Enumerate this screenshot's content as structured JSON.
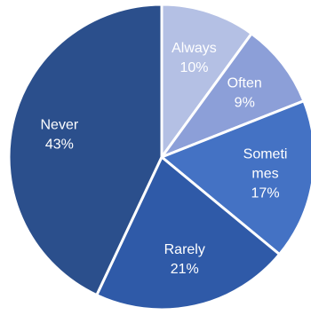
{
  "chart_data": {
    "type": "pie",
    "title": "",
    "legend": "none",
    "slices": [
      {
        "category": "Always",
        "value": 10,
        "label_lines": [
          "Always",
          "10%"
        ],
        "color": "#b4c0e4"
      },
      {
        "category": "Often",
        "value": 9,
        "label_lines": [
          "Often",
          "9%"
        ],
        "color": "#8c9fd8"
      },
      {
        "category": "Sometimes",
        "value": 17,
        "label_lines": [
          "Someti",
          "mes",
          "17%"
        ],
        "color": "#4472c4"
      },
      {
        "category": "Rarely",
        "value": 21,
        "label_lines": [
          "Rarely",
          "21%"
        ],
        "color": "#2f5aa8"
      },
      {
        "category": "Never",
        "value": 43,
        "label_lines": [
          "Never",
          "43%"
        ],
        "color": "#2b4f8c"
      }
    ]
  }
}
